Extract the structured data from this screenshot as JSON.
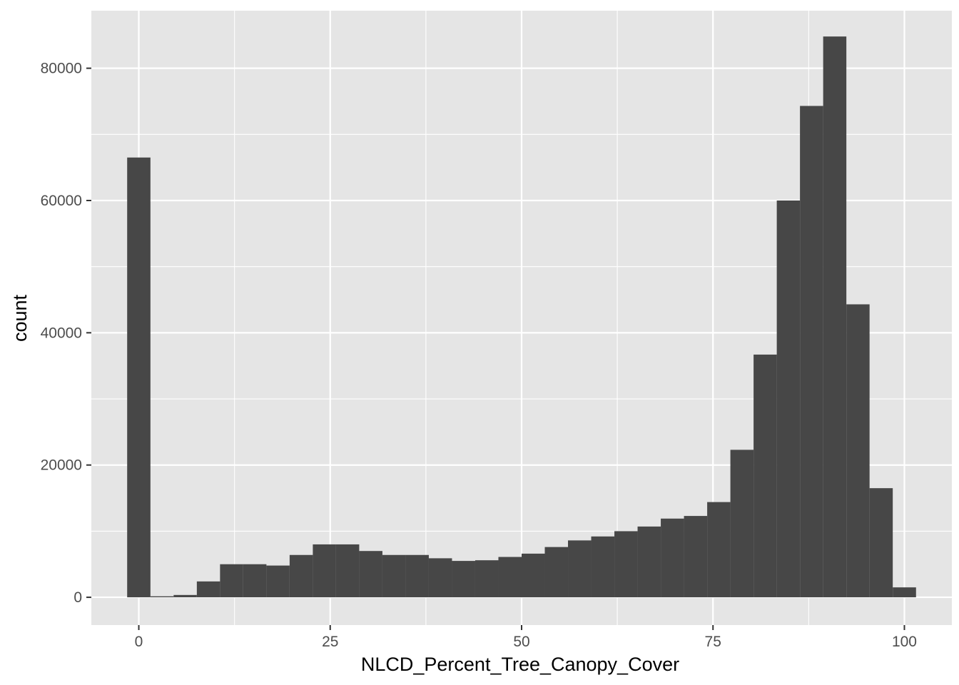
{
  "chart_data": {
    "type": "bar",
    "xlabel": "NLCD_Percent_Tree_Canopy_Cover",
    "ylabel": "count",
    "xlim": [
      -6.2,
      106.2
    ],
    "ylim": [
      -4200,
      88700
    ],
    "x_ticks": [
      0,
      25,
      50,
      75,
      100
    ],
    "x_tick_labels": [
      "0",
      "25",
      "50",
      "75",
      "100"
    ],
    "x_minor_breaks": [
      12.5,
      37.5,
      62.5,
      87.5
    ],
    "y_ticks": [
      0,
      20000,
      40000,
      60000,
      80000
    ],
    "y_tick_labels": [
      "0",
      "20000",
      "40000",
      "60000",
      "80000"
    ],
    "y_minor_breaks": [
      10000,
      30000,
      50000,
      70000
    ],
    "grid": true,
    "bin_width": 3.03,
    "bins": [
      {
        "x0": -1.52,
        "x1": 1.52,
        "count": 66500
      },
      {
        "x0": 1.52,
        "x1": 4.55,
        "count": 150
      },
      {
        "x0": 4.55,
        "x1": 7.58,
        "count": 350
      },
      {
        "x0": 7.58,
        "x1": 10.61,
        "count": 2400
      },
      {
        "x0": 10.61,
        "x1": 13.64,
        "count": 5000
      },
      {
        "x0": 13.64,
        "x1": 16.67,
        "count": 5000
      },
      {
        "x0": 16.67,
        "x1": 19.7,
        "count": 4800
      },
      {
        "x0": 19.7,
        "x1": 22.73,
        "count": 6400
      },
      {
        "x0": 22.73,
        "x1": 25.76,
        "count": 8000
      },
      {
        "x0": 25.76,
        "x1": 28.79,
        "count": 8000
      },
      {
        "x0": 28.79,
        "x1": 31.82,
        "count": 7000
      },
      {
        "x0": 31.82,
        "x1": 34.85,
        "count": 6400
      },
      {
        "x0": 34.85,
        "x1": 37.88,
        "count": 6400
      },
      {
        "x0": 37.88,
        "x1": 40.91,
        "count": 5900
      },
      {
        "x0": 40.91,
        "x1": 43.94,
        "count": 5500
      },
      {
        "x0": 43.94,
        "x1": 46.97,
        "count": 5600
      },
      {
        "x0": 46.97,
        "x1": 50.0,
        "count": 6100
      },
      {
        "x0": 50.0,
        "x1": 53.03,
        "count": 6600
      },
      {
        "x0": 53.03,
        "x1": 56.06,
        "count": 7600
      },
      {
        "x0": 56.06,
        "x1": 59.09,
        "count": 8600
      },
      {
        "x0": 59.09,
        "x1": 62.12,
        "count": 9200
      },
      {
        "x0": 62.12,
        "x1": 65.15,
        "count": 10000
      },
      {
        "x0": 65.15,
        "x1": 68.18,
        "count": 10700
      },
      {
        "x0": 68.18,
        "x1": 71.21,
        "count": 11900
      },
      {
        "x0": 71.21,
        "x1": 74.24,
        "count": 12300
      },
      {
        "x0": 74.24,
        "x1": 77.27,
        "count": 14400
      },
      {
        "x0": 77.27,
        "x1": 80.3,
        "count": 22300
      },
      {
        "x0": 80.3,
        "x1": 83.33,
        "count": 36700
      },
      {
        "x0": 83.33,
        "x1": 86.36,
        "count": 60000
      },
      {
        "x0": 86.36,
        "x1": 89.39,
        "count": 74300
      },
      {
        "x0": 89.39,
        "x1": 92.42,
        "count": 84800
      },
      {
        "x0": 92.42,
        "x1": 95.45,
        "count": 44300
      },
      {
        "x0": 95.45,
        "x1": 98.48,
        "count": 16500
      },
      {
        "x0": 98.48,
        "x1": 101.52,
        "count": 1500
      }
    ]
  },
  "colors": {
    "panel_background": "#e5e5e5",
    "grid_line": "#ffffff",
    "bar_fill": "#474747",
    "tick_text": "#4d4d4d",
    "axis_title": "#000000"
  }
}
